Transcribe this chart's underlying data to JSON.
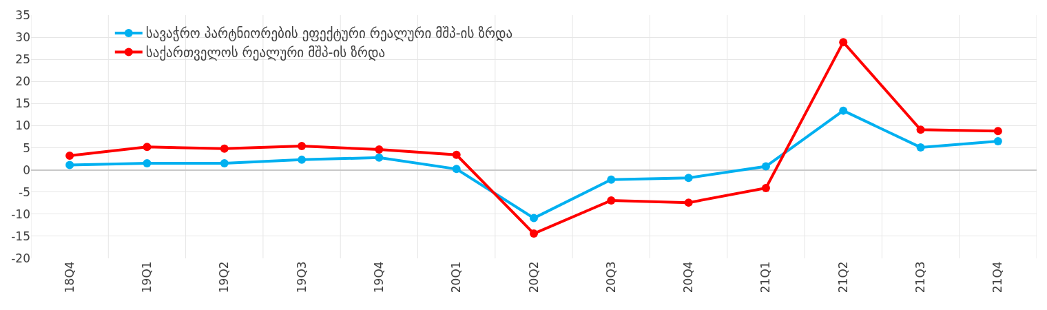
{
  "chart_data": {
    "type": "line",
    "categories": [
      "18Q4",
      "19Q1",
      "19Q2",
      "19Q3",
      "19Q4",
      "20Q1",
      "20Q2",
      "20Q3",
      "20Q4",
      "21Q1",
      "21Q2",
      "21Q3",
      "21Q4"
    ],
    "series": [
      {
        "name": "სავაჭრო პარტნიორების ეფექტური რეალური მშპ-ის ზრდა",
        "color": "#00b0f0",
        "values": [
          1.1,
          1.5,
          1.5,
          2.3,
          2.8,
          0.2,
          -10.9,
          -2.2,
          -1.8,
          0.8,
          13.4,
          5.1,
          6.5
        ]
      },
      {
        "name": "საქართველოს რეალური მშპ-ის ზრდა",
        "color": "#ff0000",
        "values": [
          3.2,
          5.2,
          4.8,
          5.4,
          4.6,
          3.4,
          -14.4,
          -6.9,
          -7.4,
          -4.1,
          28.9,
          9.1,
          8.8
        ]
      }
    ],
    "ylim": [
      -20,
      35
    ],
    "yticks": [
      -20,
      -15,
      -10,
      -5,
      0,
      5,
      10,
      15,
      20,
      25,
      30,
      35
    ],
    "grid": true,
    "legend": "top left",
    "marker": "circle",
    "line_style": "solid"
  }
}
